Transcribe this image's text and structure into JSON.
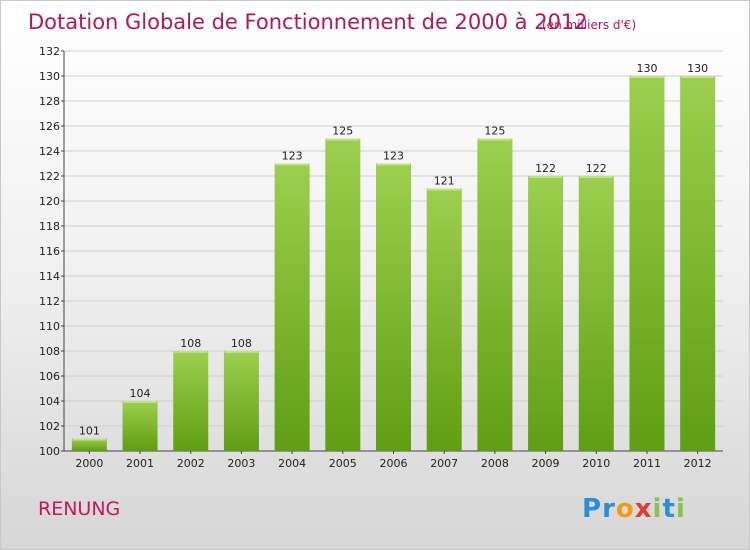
{
  "chart_data": {
    "type": "bar",
    "title": "Dotation Globale de Fonctionnement de 2000 à 2012",
    "subtitle": "(en milliers d'€)",
    "categories": [
      "2000",
      "2001",
      "2002",
      "2003",
      "2004",
      "2005",
      "2006",
      "2007",
      "2008",
      "2009",
      "2010",
      "2011",
      "2012"
    ],
    "values": [
      101,
      104,
      108,
      108,
      123,
      125,
      123,
      121,
      125,
      122,
      122,
      130,
      130
    ],
    "ylim": [
      100,
      132
    ],
    "yticks": [
      100,
      102,
      104,
      106,
      108,
      110,
      112,
      114,
      116,
      118,
      120,
      122,
      124,
      126,
      128,
      130,
      132
    ],
    "grid": true,
    "xlabel": "",
    "ylabel": ""
  },
  "commune": "RENUNG",
  "brand": {
    "letters": [
      "P",
      "r",
      "o",
      "x",
      "i",
      "t",
      "i"
    ],
    "colors": [
      "#2a8fd6",
      "#2a8fd6",
      "#f39c12",
      "#e53935",
      "#8bc34a",
      "#2a8fd6",
      "#8bc34a"
    ]
  },
  "colors": {
    "bar_top": "#9ccf4e",
    "bar_bottom": "#5f9e12",
    "title": "#b0185a",
    "grid": "#cfcfcf"
  }
}
